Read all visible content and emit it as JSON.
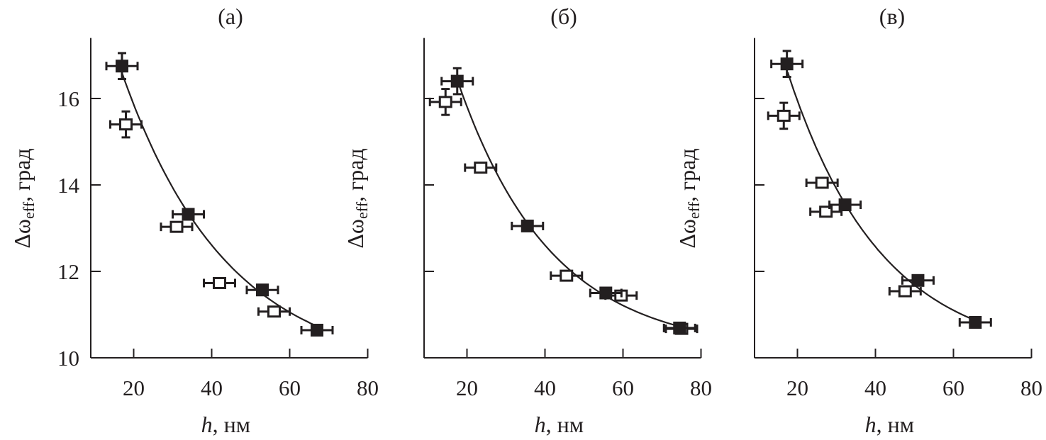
{
  "chart_data": [
    {
      "type": "scatter",
      "title": "(а)",
      "xlabel_var": "h",
      "xlabel_unit": ", нм",
      "ylabel_main": "Δω",
      "ylabel_sub": "eff",
      "ylabel_unit": ", град",
      "xlim": [
        9,
        80
      ],
      "ylim": [
        10,
        17.4
      ],
      "xticks": [
        20,
        40,
        60,
        80
      ],
      "yticks": [
        10,
        12,
        14,
        16
      ],
      "show_ytick_labels": true,
      "series": [
        {
          "name": "filled",
          "marker": "filled-square",
          "points": [
            {
              "x": 17,
              "y": 16.75,
              "xerr": 4,
              "yerr": 0.3
            },
            {
              "x": 34,
              "y": 13.32,
              "xerr": 4
            },
            {
              "x": 53,
              "y": 11.57,
              "xerr": 4
            },
            {
              "x": 67,
              "y": 10.64,
              "xerr": 4
            }
          ]
        },
        {
          "name": "open",
          "marker": "open-square",
          "points": [
            {
              "x": 18,
              "y": 15.4,
              "xerr": 4,
              "yerr": 0.3
            },
            {
              "x": 31,
              "y": 13.03,
              "xerr": 4
            },
            {
              "x": 42,
              "y": 11.73,
              "xerr": 4
            },
            {
              "x": 56,
              "y": 11.07,
              "xerr": 4
            }
          ]
        }
      ],
      "fit": {
        "a": 9.64,
        "b": 13.05,
        "t": 27,
        "range": [
          17,
          67
        ]
      }
    },
    {
      "type": "scatter",
      "title": "(б)",
      "xlabel_var": "h",
      "xlabel_unit": ", нм",
      "ylabel_main": "Δω",
      "ylabel_sub": "eff",
      "ylabel_unit": ", град",
      "xlim": [
        9,
        80
      ],
      "ylim": [
        10,
        17.4
      ],
      "xticks": [
        20,
        40,
        60,
        80
      ],
      "yticks": [
        10,
        12,
        14,
        16
      ],
      "show_ytick_labels": false,
      "series": [
        {
          "name": "filled",
          "marker": "filled-square",
          "points": [
            {
              "x": 17.5,
              "y": 16.4,
              "xerr": 4,
              "yerr": 0.3
            },
            {
              "x": 35.5,
              "y": 13.05,
              "xerr": 4
            },
            {
              "x": 55.6,
              "y": 11.5,
              "xerr": 4
            },
            {
              "x": 74.5,
              "y": 10.69,
              "xerr": 4
            }
          ]
        },
        {
          "name": "open",
          "marker": "open-square",
          "points": [
            {
              "x": 14.5,
              "y": 15.92,
              "xerr": 4,
              "yerr": 0.3
            },
            {
              "x": 23.5,
              "y": 14.4,
              "xerr": 4
            },
            {
              "x": 45.5,
              "y": 11.9,
              "xerr": 4
            },
            {
              "x": 59.5,
              "y": 11.44,
              "xerr": 4
            },
            {
              "x": 75,
              "y": 10.67,
              "xerr": 4
            }
          ]
        }
      ],
      "fit": {
        "a": 10.14,
        "b": 13.05,
        "t": 24,
        "range": [
          18,
          75
        ]
      }
    },
    {
      "type": "scatter",
      "title": "(в)",
      "xlabel_var": "h",
      "xlabel_unit": ", нм",
      "ylabel_main": "Δω",
      "ylabel_sub": "eff",
      "ylabel_unit": ", град",
      "xlim": [
        9,
        80
      ],
      "ylim": [
        10,
        17.4
      ],
      "xticks": [
        20,
        40,
        60,
        80
      ],
      "yticks": [
        10,
        12,
        14,
        16
      ],
      "show_ytick_labels": false,
      "series": [
        {
          "name": "filled",
          "marker": "filled-square",
          "points": [
            {
              "x": 17.3,
              "y": 16.8,
              "xerr": 4,
              "yerr": 0.3
            },
            {
              "x": 32.2,
              "y": 13.54,
              "xerr": 4
            },
            {
              "x": 50.9,
              "y": 11.79,
              "xerr": 4
            },
            {
              "x": 65.6,
              "y": 10.82,
              "xerr": 4
            }
          ]
        },
        {
          "name": "open",
          "marker": "open-square",
          "points": [
            {
              "x": 16.5,
              "y": 15.6,
              "xerr": 4,
              "yerr": 0.3
            },
            {
              "x": 26.3,
              "y": 14.05,
              "xerr": 4
            },
            {
              "x": 27.3,
              "y": 13.38,
              "xerr": 4
            },
            {
              "x": 47.6,
              "y": 11.54,
              "xerr": 4
            }
          ]
        }
      ],
      "fit": {
        "a": 9.97,
        "b": 13.76,
        "t": 24,
        "range": [
          17.5,
          65.5
        ]
      }
    }
  ]
}
